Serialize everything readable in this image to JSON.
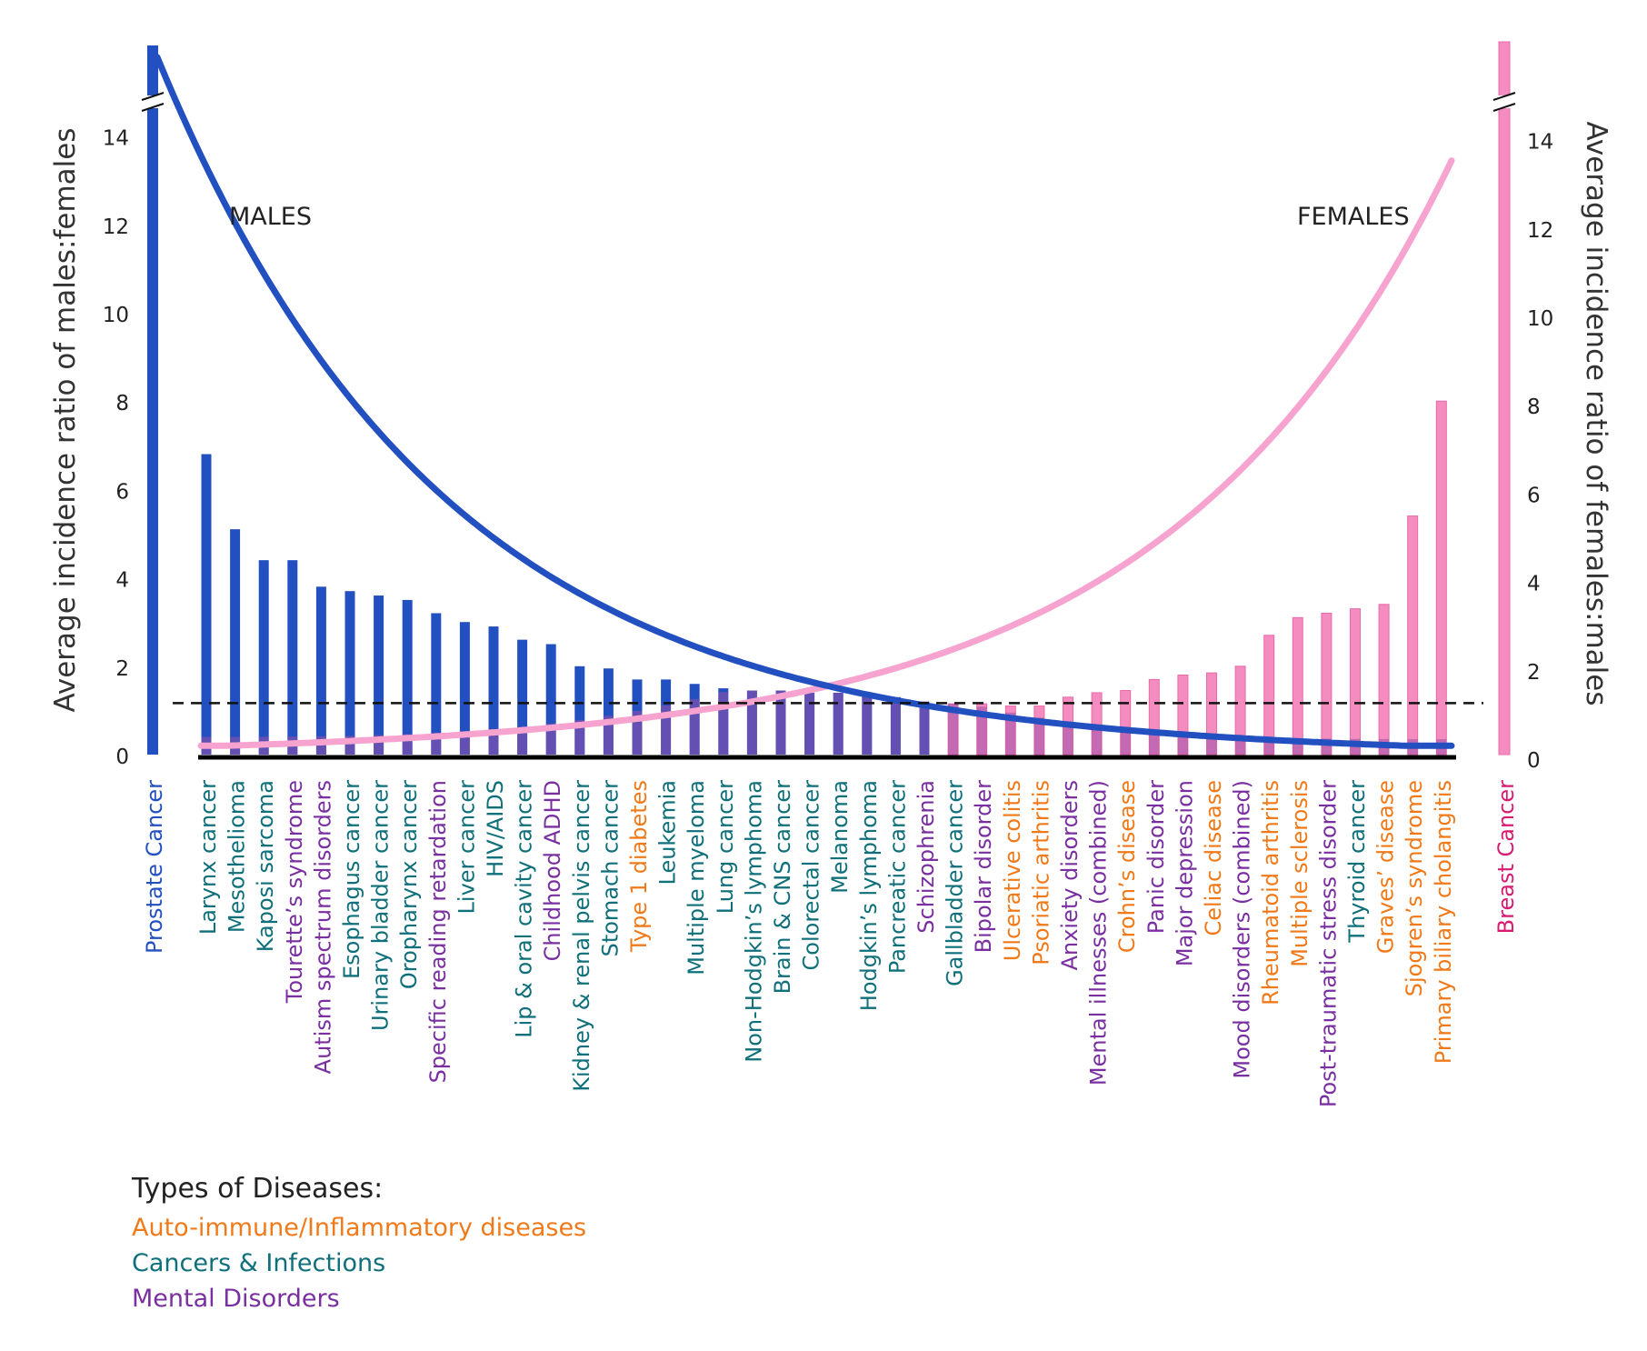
{
  "chart_data": {
    "type": "bar",
    "left_axis": {
      "label": "Average incidence ratio of males:females",
      "ticks": [
        "0",
        "2",
        "4",
        "6",
        "8",
        "10",
        "12",
        "14"
      ],
      "range": [
        0,
        16
      ]
    },
    "right_axis": {
      "label": "Average incidence ratio of females:males",
      "ticks": [
        "0",
        "2",
        "4",
        "6",
        "8",
        "10",
        "12",
        "14"
      ],
      "range": [
        0,
        16
      ]
    },
    "annotations": {
      "males": "MALES",
      "females": "FEMALES"
    },
    "reference_line": 1,
    "colors": {
      "male_bar": "#2350c0",
      "female_bar": "#f48cc0",
      "male_curve": "#2350c0",
      "female_curve": "#f7a3cf",
      "overlap": "#9a4fa6",
      "autoimmune": "#f07a1a",
      "cancer": "#0f6f7a",
      "mental": "#7a2fa0",
      "prostate_label": "#2350c0",
      "breast_label": "#d81b72"
    },
    "legend": {
      "title": "Types of Diseases:",
      "items": [
        {
          "label": "Auto-immune/Inflammatory diseases",
          "category": "autoimmune"
        },
        {
          "label": "Cancers & Infections",
          "category": "cancer"
        },
        {
          "label": "Mental Disorders",
          "category": "mental"
        }
      ]
    },
    "prostate": {
      "label": "Prostate Cancer",
      "value": 16,
      "side": "male"
    },
    "breast": {
      "label": "Breast Cancer",
      "value": 16,
      "side": "female"
    },
    "categories": [
      {
        "label": "Larynx cancer",
        "category": "cancer",
        "side": "male",
        "value": 6.8
      },
      {
        "label": "Mesothelioma",
        "category": "cancer",
        "side": "male",
        "value": 5.1
      },
      {
        "label": "Kaposi sarcoma",
        "category": "cancer",
        "side": "male",
        "value": 4.4
      },
      {
        "label": "Tourette’s syndrome",
        "category": "mental",
        "side": "male",
        "value": 4.4
      },
      {
        "label": "Autism spectrum disorders",
        "category": "mental",
        "side": "male",
        "value": 3.8
      },
      {
        "label": "Esophagus cancer",
        "category": "cancer",
        "side": "male",
        "value": 3.7
      },
      {
        "label": "Urinary bladder cancer",
        "category": "cancer",
        "side": "male",
        "value": 3.6
      },
      {
        "label": "Oropharynx cancer",
        "category": "cancer",
        "side": "male",
        "value": 3.5
      },
      {
        "label": "Specific reading retardation",
        "category": "mental",
        "side": "male",
        "value": 3.2
      },
      {
        "label": "Liver cancer",
        "category": "cancer",
        "side": "male",
        "value": 3.0
      },
      {
        "label": "HIV/AIDS",
        "category": "cancer",
        "side": "male",
        "value": 2.9
      },
      {
        "label": "Lip & oral cavity cancer",
        "category": "cancer",
        "side": "male",
        "value": 2.6
      },
      {
        "label": "Childhood ADHD",
        "category": "mental",
        "side": "male",
        "value": 2.5
      },
      {
        "label": "Kidney & renal pelvis cancer",
        "category": "cancer",
        "side": "male",
        "value": 2.0
      },
      {
        "label": "Stomach cancer",
        "category": "cancer",
        "side": "male",
        "value": 1.95
      },
      {
        "label": "Type 1 diabetes",
        "category": "autoimmune",
        "side": "male",
        "value": 1.7
      },
      {
        "label": "Leukemia",
        "category": "cancer",
        "side": "male",
        "value": 1.7
      },
      {
        "label": "Multiple myeloma",
        "category": "cancer",
        "side": "male",
        "value": 1.6
      },
      {
        "label": "Lung cancer",
        "category": "cancer",
        "side": "male",
        "value": 1.5
      },
      {
        "label": "Non-Hodgkin’s lymphoma",
        "category": "cancer",
        "side": "male",
        "value": 1.45
      },
      {
        "label": "Brain & CNS cancer",
        "category": "cancer",
        "side": "male",
        "value": 1.45
      },
      {
        "label": "Colorectal cancer",
        "category": "cancer",
        "side": "male",
        "value": 1.4
      },
      {
        "label": "Melanoma",
        "category": "cancer",
        "side": "male",
        "value": 1.4
      },
      {
        "label": "Hodgkin’s lymphoma",
        "category": "cancer",
        "side": "male",
        "value": 1.35
      },
      {
        "label": "Pancreatic cancer",
        "category": "cancer",
        "side": "male",
        "value": 1.3
      },
      {
        "label": "Schizophrenia",
        "category": "mental",
        "side": "male",
        "value": 1.2
      },
      {
        "label": "Gallbladder cancer",
        "category": "cancer",
        "side": "female",
        "value": 1.15
      },
      {
        "label": "Bipolar disorder",
        "category": "mental",
        "side": "female",
        "value": 1.15
      },
      {
        "label": "Ulcerative colitis",
        "category": "autoimmune",
        "side": "female",
        "value": 1.1
      },
      {
        "label": "Psoriatic arthritis",
        "category": "autoimmune",
        "side": "female",
        "value": 1.1
      },
      {
        "label": "Anxiety disorders",
        "category": "mental",
        "side": "female",
        "value": 1.3
      },
      {
        "label": "Mental illnesses (combined)",
        "category": "mental",
        "side": "female",
        "value": 1.4
      },
      {
        "label": "Crohn’s disease",
        "category": "autoimmune",
        "side": "female",
        "value": 1.45
      },
      {
        "label": "Panic disorder",
        "category": "mental",
        "side": "female",
        "value": 1.7
      },
      {
        "label": "Major depression",
        "category": "mental",
        "side": "female",
        "value": 1.8
      },
      {
        "label": "Celiac disease",
        "category": "autoimmune",
        "side": "female",
        "value": 1.85
      },
      {
        "label": "Mood disorders (combined)",
        "category": "mental",
        "side": "female",
        "value": 2.0
      },
      {
        "label": "Rheumatoid arthritis",
        "category": "autoimmune",
        "side": "female",
        "value": 2.7
      },
      {
        "label": "Multiple sclerosis",
        "category": "autoimmune",
        "side": "female",
        "value": 3.1
      },
      {
        "label": "Post-traumatic stress disorder",
        "category": "mental",
        "side": "female",
        "value": 3.2
      },
      {
        "label": "Thyroid cancer",
        "category": "cancer",
        "side": "female",
        "value": 3.3
      },
      {
        "label": "Graves’ disease",
        "category": "autoimmune",
        "side": "female",
        "value": 3.4
      },
      {
        "label": "Sjogren’s syndrome",
        "category": "autoimmune",
        "side": "female",
        "value": 5.4
      },
      {
        "label": "Primary biliary cholangitis",
        "category": "autoimmune",
        "side": "female",
        "value": 8.0
      }
    ]
  }
}
